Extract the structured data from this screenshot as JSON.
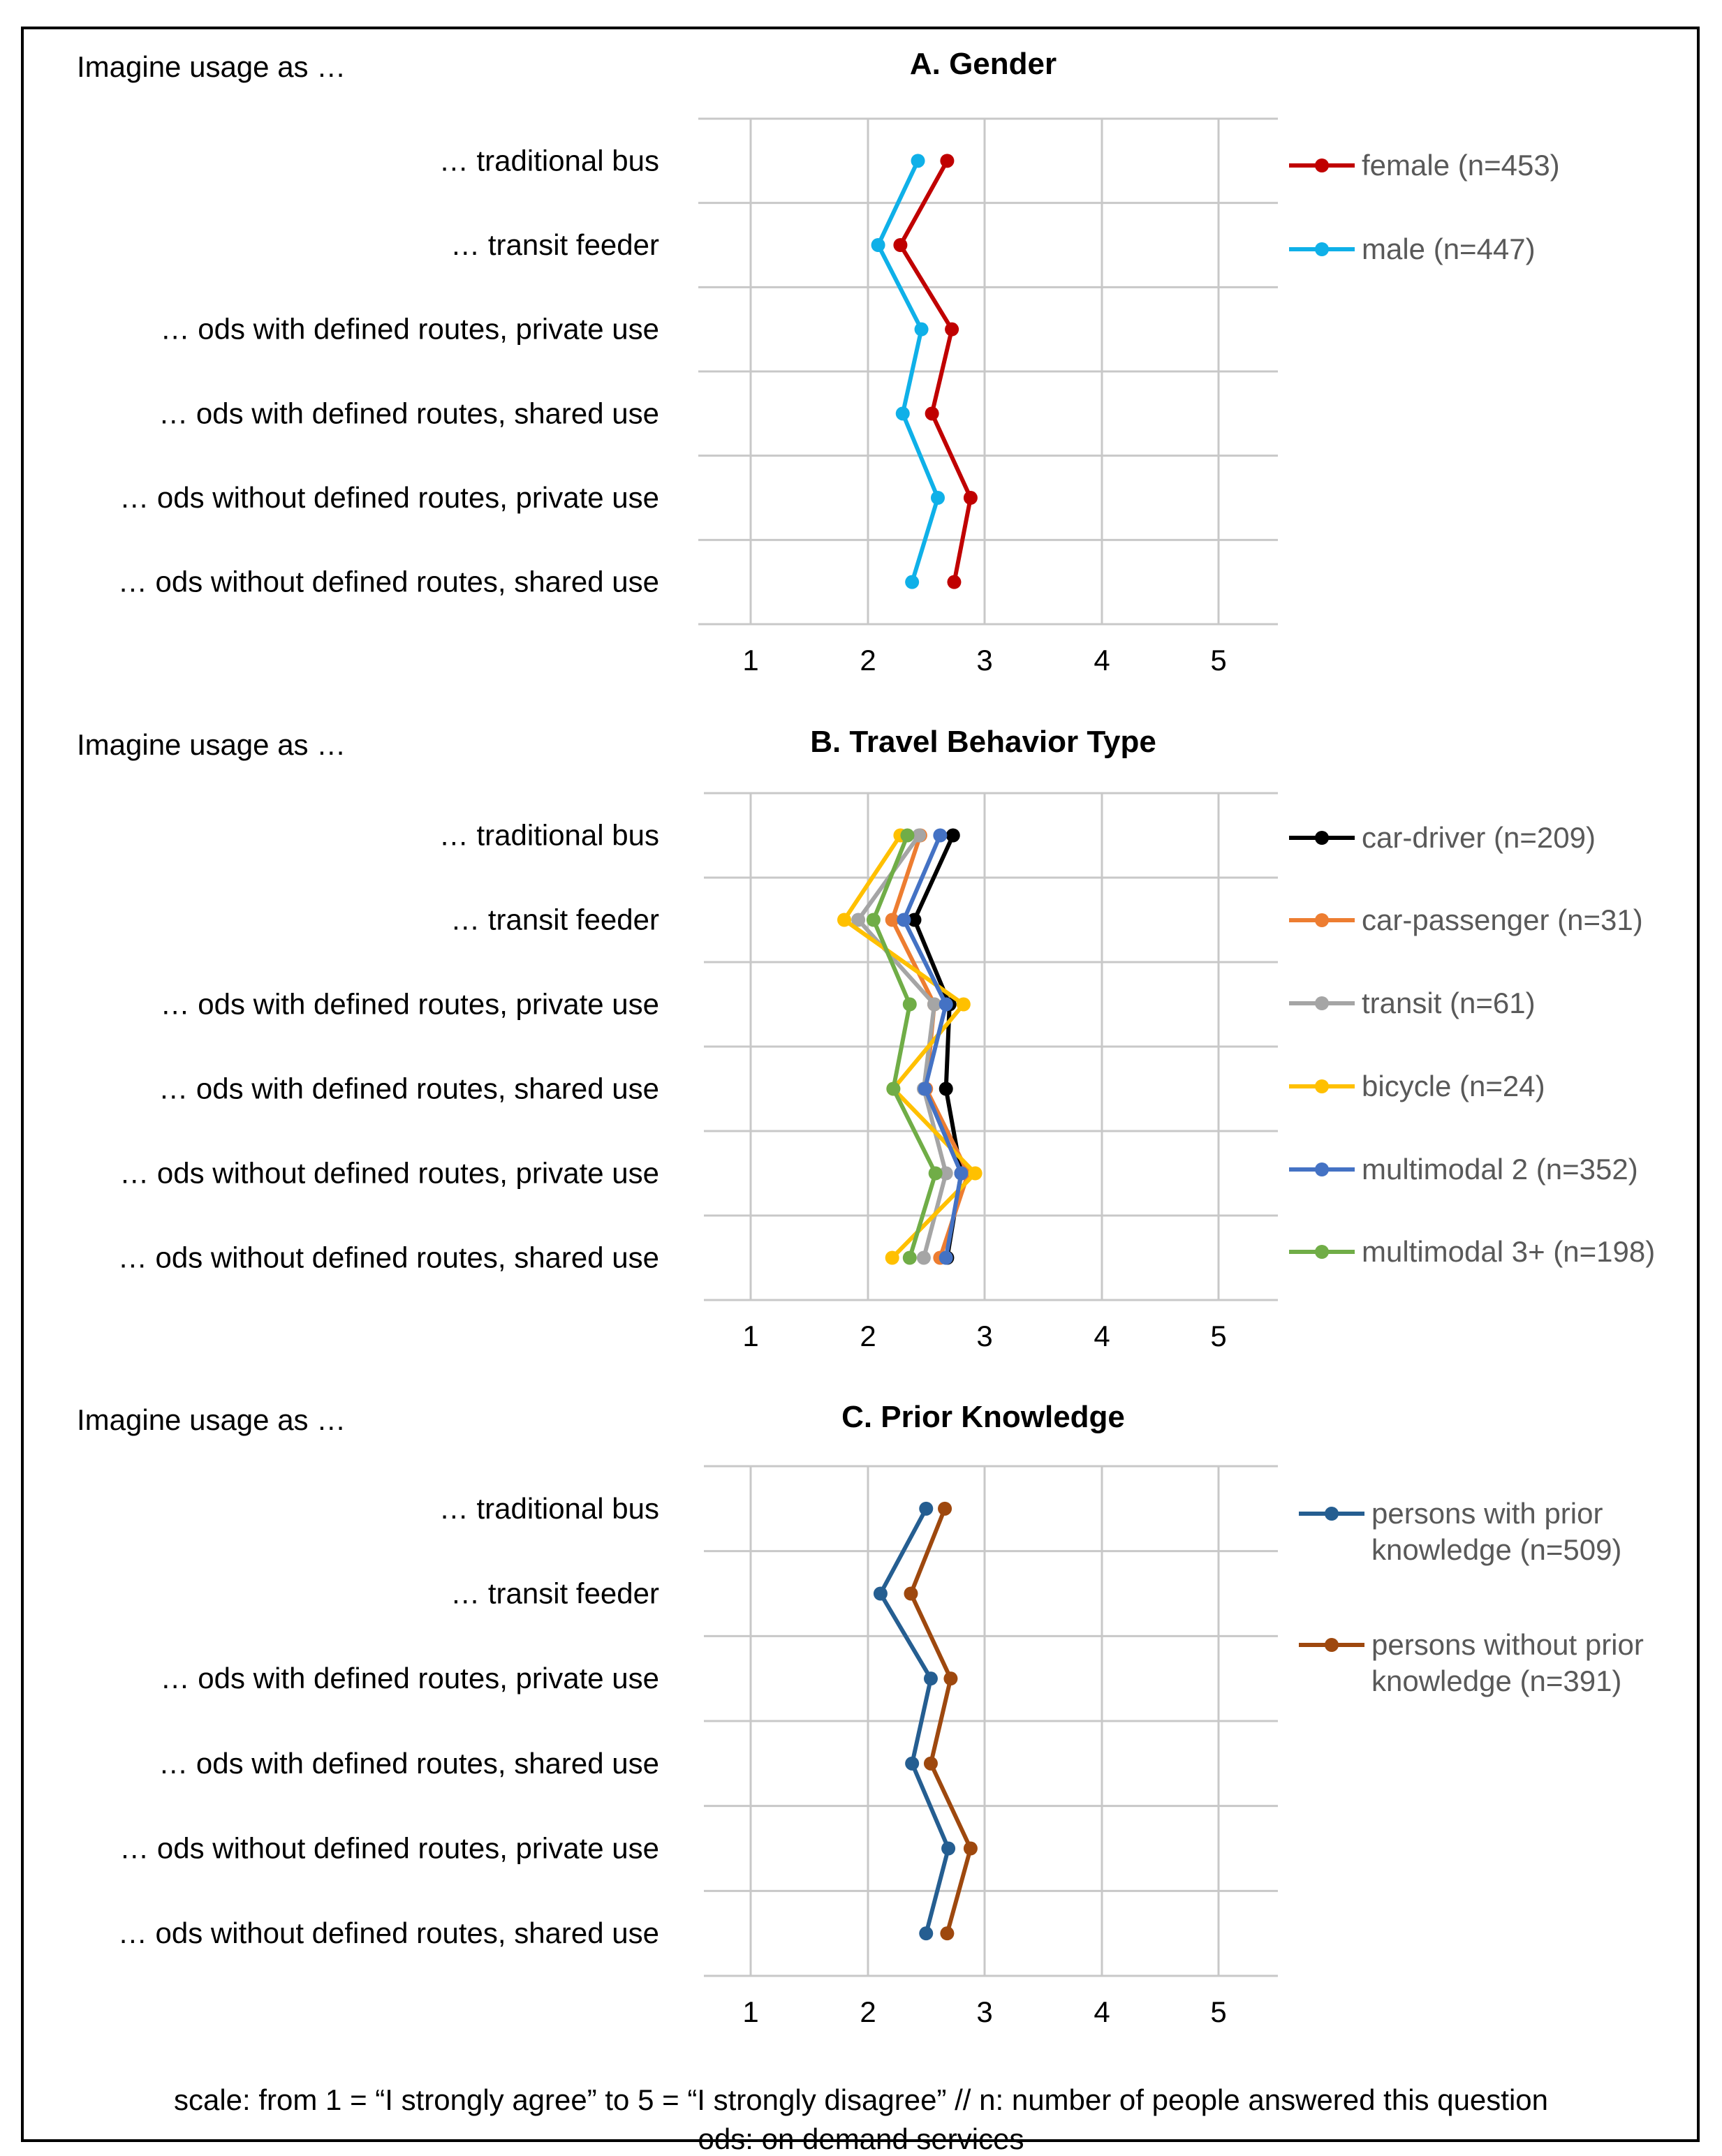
{
  "footnote": {
    "line1": "scale: from 1 = “I strongly agree” to 5 = “I strongly disagree” // n: number of people answered this question",
    "line2": "ods: on demand services"
  },
  "chart_data": [
    {
      "type": "line",
      "title": "A. Gender",
      "prompt": "Imagine usage as …",
      "categories": [
        "… traditional bus",
        "… transit feeder",
        "… ods with defined routes, private use",
        "… ods with defined routes, shared use",
        "… ods without defined routes, private use",
        "… ods without defined routes, shared use"
      ],
      "xticks": [
        "1",
        "2",
        "3",
        "4",
        "5"
      ],
      "xlim": [
        1,
        5
      ],
      "grid": true,
      "legend": "right",
      "series": [
        {
          "name": "female (n=453)",
          "color": "#C00000",
          "values": [
            2.68,
            2.28,
            2.72,
            2.55,
            2.88,
            2.74
          ]
        },
        {
          "name": "male (n=447)",
          "color": "#0FB0E8",
          "values": [
            2.43,
            2.09,
            2.46,
            2.3,
            2.6,
            2.38
          ]
        }
      ]
    },
    {
      "type": "line",
      "title": "B. Travel Behavior Type",
      "prompt": "Imagine usage as …",
      "categories": [
        "… traditional bus",
        "… transit feeder",
        "… ods with defined routes, private use",
        "… ods with defined routes, shared use",
        "… ods without defined routes, private use",
        "… ods without defined routes, shared use"
      ],
      "xticks": [
        "1",
        "2",
        "3",
        "4",
        "5"
      ],
      "xlim": [
        1,
        5
      ],
      "grid": true,
      "legend": "right",
      "series": [
        {
          "name": "car-driver (n=209)",
          "color": "#000000",
          "values": [
            2.73,
            2.4,
            2.7,
            2.67,
            2.8,
            2.68
          ]
        },
        {
          "name": "car-passenger (n=31)",
          "color": "#ED7D31",
          "values": [
            2.45,
            2.21,
            2.57,
            2.5,
            2.86,
            2.62
          ]
        },
        {
          "name": "transit (n=61)",
          "color": "#A5A5A5",
          "values": [
            2.44,
            1.92,
            2.57,
            2.48,
            2.67,
            2.48
          ]
        },
        {
          "name": "bicycle (n=24)",
          "color": "#FFC000",
          "values": [
            2.28,
            1.8,
            2.82,
            2.22,
            2.92,
            2.21
          ]
        },
        {
          "name": "multimodal 2 (n=352)",
          "color": "#4472C4",
          "values": [
            2.62,
            2.31,
            2.67,
            2.49,
            2.8,
            2.67
          ]
        },
        {
          "name": "multimodal 3+ (n=198)",
          "color": "#70AD47",
          "values": [
            2.34,
            2.05,
            2.36,
            2.22,
            2.58,
            2.36
          ]
        }
      ]
    },
    {
      "type": "line",
      "title": "C. Prior Knowledge",
      "prompt": "Imagine usage as …",
      "categories": [
        "… traditional bus",
        "… transit feeder",
        "… ods with defined routes, private use",
        "… ods with defined routes, shared use",
        "… ods without defined routes, private use",
        "… ods without defined routes, shared use"
      ],
      "xticks": [
        "1",
        "2",
        "3",
        "4",
        "5"
      ],
      "xlim": [
        1,
        5
      ],
      "grid": true,
      "legend": "right",
      "series": [
        {
          "name": "persons with prior knowledge (n=509)",
          "color": "#255E91",
          "values": [
            2.5,
            2.11,
            2.54,
            2.38,
            2.69,
            2.5
          ]
        },
        {
          "name": "persons without prior knowledge (n=391)",
          "color": "#9E480E",
          "values": [
            2.66,
            2.37,
            2.71,
            2.54,
            2.88,
            2.68
          ]
        }
      ]
    }
  ]
}
